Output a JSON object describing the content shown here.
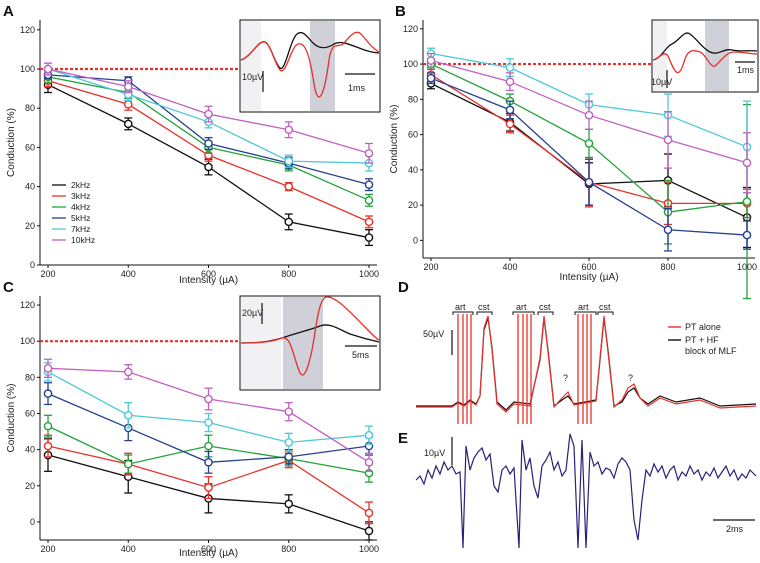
{
  "figure": {
    "panel_letters": [
      "A",
      "B",
      "C",
      "D",
      "E"
    ]
  },
  "chart_data": [
    {
      "id": "A",
      "type": "line",
      "title": "",
      "xlabel": "Intensity (µA)",
      "ylabel": "Conduction (%)",
      "x": [
        200,
        400,
        600,
        800,
        1000
      ],
      "x_ticks": [
        "200",
        "400",
        "600",
        "800",
        "1000"
      ],
      "y_ticks": [
        "0",
        "20",
        "40",
        "60",
        "80",
        "100",
        "120"
      ],
      "xlim": [
        200,
        1000
      ],
      "ylim": [
        0,
        125
      ],
      "legend_position": "left-middle",
      "legend": [
        "2kHz",
        "3kHz",
        "4kHz",
        "5kHz",
        "7kHz",
        "10kHz"
      ],
      "series": [
        {
          "name": "2kHz",
          "color": "#111111",
          "values": [
            92,
            72,
            50,
            22,
            14
          ],
          "err": [
            4,
            3,
            4,
            4,
            4
          ]
        },
        {
          "name": "3kHz",
          "color": "#e8312a",
          "values": [
            94,
            82,
            56,
            40,
            22
          ],
          "err": [
            3,
            3,
            3,
            2,
            3
          ]
        },
        {
          "name": "4kHz",
          "color": "#23a23a",
          "values": [
            96,
            88,
            60,
            51,
            33
          ],
          "err": [
            3,
            3,
            3,
            3,
            3
          ]
        },
        {
          "name": "5kHz",
          "color": "#27418f",
          "values": [
            97,
            94,
            62,
            52,
            41
          ],
          "err": [
            2,
            2,
            3,
            3,
            3
          ]
        },
        {
          "name": "7kHz",
          "color": "#4fc8d8",
          "values": [
            100,
            87,
            73,
            53,
            52
          ],
          "err": [
            3,
            3,
            3,
            3,
            4
          ]
        },
        {
          "name": "10kHz",
          "color": "#c062c0",
          "values": [
            100,
            91,
            77,
            69,
            57
          ],
          "err": [
            3,
            3,
            4,
            4,
            5
          ]
        }
      ],
      "inset": {
        "scale_v": "10µV",
        "scale_t": "1ms"
      }
    },
    {
      "id": "B",
      "type": "line",
      "title": "",
      "xlabel": "Intensity (µA)",
      "ylabel": "Conduction (%)",
      "x": [
        200,
        400,
        600,
        800,
        1000
      ],
      "x_ticks": [
        "200",
        "400",
        "600",
        "800",
        "1000"
      ],
      "y_ticks": [
        "0",
        "20",
        "40",
        "60",
        "80",
        "100",
        "120"
      ],
      "xlim": [
        200,
        1000
      ],
      "ylim": [
        -10,
        125
      ],
      "series": [
        {
          "name": "2kHz",
          "color": "#111111",
          "values": [
            89,
            67,
            32,
            34,
            13
          ],
          "err": [
            3,
            5,
            12,
            15,
            17
          ]
        },
        {
          "name": "3kHz",
          "color": "#e8312a",
          "values": [
            94,
            66,
            33,
            21,
            21
          ],
          "err": [
            3,
            5,
            14,
            12,
            8
          ]
        },
        {
          "name": "4kHz",
          "color": "#23a23a",
          "values": [
            100,
            79,
            55,
            16,
            22
          ],
          "err": [
            3,
            4,
            8,
            18,
            55
          ]
        },
        {
          "name": "5kHz",
          "color": "#27418f",
          "values": [
            92,
            74,
            33,
            6,
            3
          ],
          "err": [
            3,
            5,
            13,
            12,
            8
          ]
        },
        {
          "name": "7kHz",
          "color": "#4fc8d8",
          "values": [
            106,
            98,
            77,
            71,
            53
          ],
          "err": [
            3,
            5,
            6,
            12,
            26
          ]
        },
        {
          "name": "10kHz",
          "color": "#c062c0",
          "values": [
            102,
            90,
            71,
            57,
            44
          ],
          "err": [
            4,
            5,
            8,
            16,
            17
          ]
        }
      ],
      "inset": {
        "scale_v": "10µV",
        "scale_t": "1ms"
      }
    },
    {
      "id": "C",
      "type": "line",
      "title": "",
      "xlabel": "Intensity (µA)",
      "ylabel": "Conduction (%)",
      "x": [
        200,
        400,
        600,
        800,
        1000
      ],
      "x_ticks": [
        "200",
        "400",
        "600",
        "800",
        "1000"
      ],
      "y_ticks": [
        "0",
        "20",
        "40",
        "60",
        "80",
        "100",
        "120"
      ],
      "xlim": [
        200,
        1000
      ],
      "ylim": [
        -10,
        125
      ],
      "series": [
        {
          "name": "2kHz",
          "color": "#111111",
          "values": [
            37,
            25,
            13,
            10,
            -5
          ],
          "err": [
            9,
            9,
            8,
            5,
            5
          ]
        },
        {
          "name": "3kHz",
          "color": "#e8312a",
          "values": [
            42,
            32,
            19,
            34,
            5
          ],
          "err": [
            6,
            6,
            6,
            4,
            6
          ]
        },
        {
          "name": "4kHz",
          "color": "#23a23a",
          "values": [
            53,
            32,
            42,
            35,
            27
          ],
          "err": [
            6,
            5,
            6,
            4,
            5
          ]
        },
        {
          "name": "5kHz",
          "color": "#27418f",
          "values": [
            71,
            52,
            33,
            36,
            42
          ],
          "err": [
            6,
            7,
            6,
            4,
            5
          ]
        },
        {
          "name": "7kHz",
          "color": "#4fc8d8",
          "values": [
            83,
            59,
            55,
            44,
            48
          ],
          "err": [
            5,
            7,
            5,
            5,
            5
          ]
        },
        {
          "name": "10kHz",
          "color": "#c062c0",
          "values": [
            85,
            83,
            68,
            61,
            33
          ],
          "err": [
            5,
            4,
            6,
            5,
            5
          ]
        }
      ],
      "inset": {
        "scale_v": "20µV",
        "scale_t": "5ms"
      }
    }
  ],
  "panel_d": {
    "labels": [
      "art",
      "cst",
      "art",
      "cst",
      "art",
      "cst"
    ],
    "question": [
      "?",
      "?"
    ],
    "scale_v": "50µV",
    "legend": [
      "PT alone",
      "PT + HF",
      "block of MLF"
    ],
    "colors": {
      "alone": "#e8312a",
      "hf": "#111111"
    }
  },
  "panel_e": {
    "scale_v": "10µV",
    "scale_t": "2ms",
    "color": "#2b1f7a"
  }
}
